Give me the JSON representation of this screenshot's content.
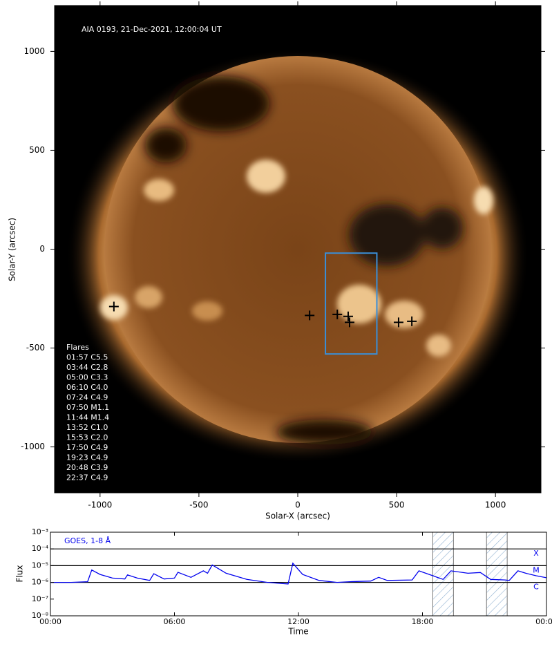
{
  "chart_data": [
    {
      "type": "scatter",
      "annotation": "AIA 0193, 21-Dec-2021, 12:00:04 UT",
      "xlabel": "Solar-X (arcsec)",
      "ylabel": "Solar-Y (arcsec)",
      "xlim": [
        -1230,
        1230
      ],
      "ylim": [
        -1232,
        1232
      ],
      "xticks": [
        -1000,
        -500,
        0,
        500,
        1000
      ],
      "yticks": [
        -1000,
        -500,
        0,
        500,
        1000
      ],
      "x": [
        -930,
        60,
        200,
        255,
        262,
        510,
        577
      ],
      "y": [
        -290,
        -335,
        -330,
        -340,
        -370,
        -370,
        -365
      ],
      "color": "#000000",
      "box": {
        "x": [
          140,
          400
        ],
        "y": [
          -530,
          -20
        ],
        "color": "#3a8fd8"
      },
      "legend_title": "Flares",
      "flares": [
        "01:57 C5.5",
        "03:44 C2.8",
        "05:00 C3.3",
        "06:10 C4.0",
        "07:24 C4.9",
        "07:50 M1.1",
        "11:44 M1.4",
        "13:52 C1.0",
        "15:53 C2.0",
        "17:50 C4.9",
        "19:23 C4.9",
        "20:48 C3.9",
        "22:37 C4.9"
      ]
    },
    {
      "type": "line",
      "annotation": "GOES, 1-8 Å",
      "xlabel": "Time",
      "ylabel": "Flux",
      "log": true,
      "xlim": [
        0,
        24
      ],
      "xticks": [
        {
          "value": 0,
          "label": "00:00"
        },
        {
          "value": 6,
          "label": "06:00"
        },
        {
          "value": 12,
          "label": "12:00"
        },
        {
          "value": 18,
          "label": "18:00"
        },
        {
          "value": 24,
          "label": "00:00"
        }
      ],
      "ylim": [
        1e-08,
        0.001
      ],
      "yticks": [
        {
          "value": 1e-08,
          "label": "10⁻⁸"
        },
        {
          "value": 1e-07,
          "label": "10⁻⁷"
        },
        {
          "value": 1e-06,
          "label": "10⁻⁶"
        },
        {
          "value": 1e-05,
          "label": "10⁻⁵"
        },
        {
          "value": 0.0001,
          "label": "10⁻⁴"
        },
        {
          "value": 0.001,
          "label": "10⁻³"
        }
      ],
      "x": [
        0,
        1,
        1.8,
        2,
        2.4,
        3,
        3.6,
        3.73,
        4.2,
        4.8,
        5,
        5.5,
        6,
        6.17,
        6.8,
        7.4,
        7.6,
        7.83,
        8.5,
        9.5,
        10.5,
        11.5,
        11.73,
        12.2,
        13,
        13.87,
        14.5,
        15.5,
        15.88,
        16.3,
        17.5,
        17.83,
        18.5,
        19,
        19.38,
        20.2,
        20.8,
        21.3,
        22,
        22.2,
        22.62,
        23,
        23.5,
        24
      ],
      "values": [
        1e-06,
        1e-06,
        1.1e-06,
        5.5e-06,
        3e-06,
        1.8e-06,
        1.6e-06,
        2.8e-06,
        1.8e-06,
        1.3e-06,
        3.3e-06,
        1.6e-06,
        1.8e-06,
        4e-06,
        2e-06,
        4.9e-06,
        3.5e-06,
        1.1e-05,
        3.5e-06,
        1.5e-06,
        1e-06,
        8e-07,
        1.4e-05,
        3e-06,
        1.3e-06,
        1e-06,
        1.1e-06,
        1.2e-06,
        2e-06,
        1.3e-06,
        1.4e-06,
        4.9e-06,
        2.5e-06,
        1.5e-06,
        4.9e-06,
        3.5e-06,
        3.9e-06,
        1.5e-06,
        1.4e-06,
        1.3e-06,
        4.9e-06,
        3.5e-06,
        2.5e-06,
        1.9e-06
      ],
      "color": "#0000ee",
      "levels": [
        {
          "value": 0.0001,
          "label": "X"
        },
        {
          "value": 1e-05,
          "label": "M"
        },
        {
          "value": 1e-06,
          "label": "C"
        }
      ],
      "spans": [
        [
          18.5,
          19.5
        ],
        [
          21.1,
          22.1
        ]
      ]
    }
  ]
}
